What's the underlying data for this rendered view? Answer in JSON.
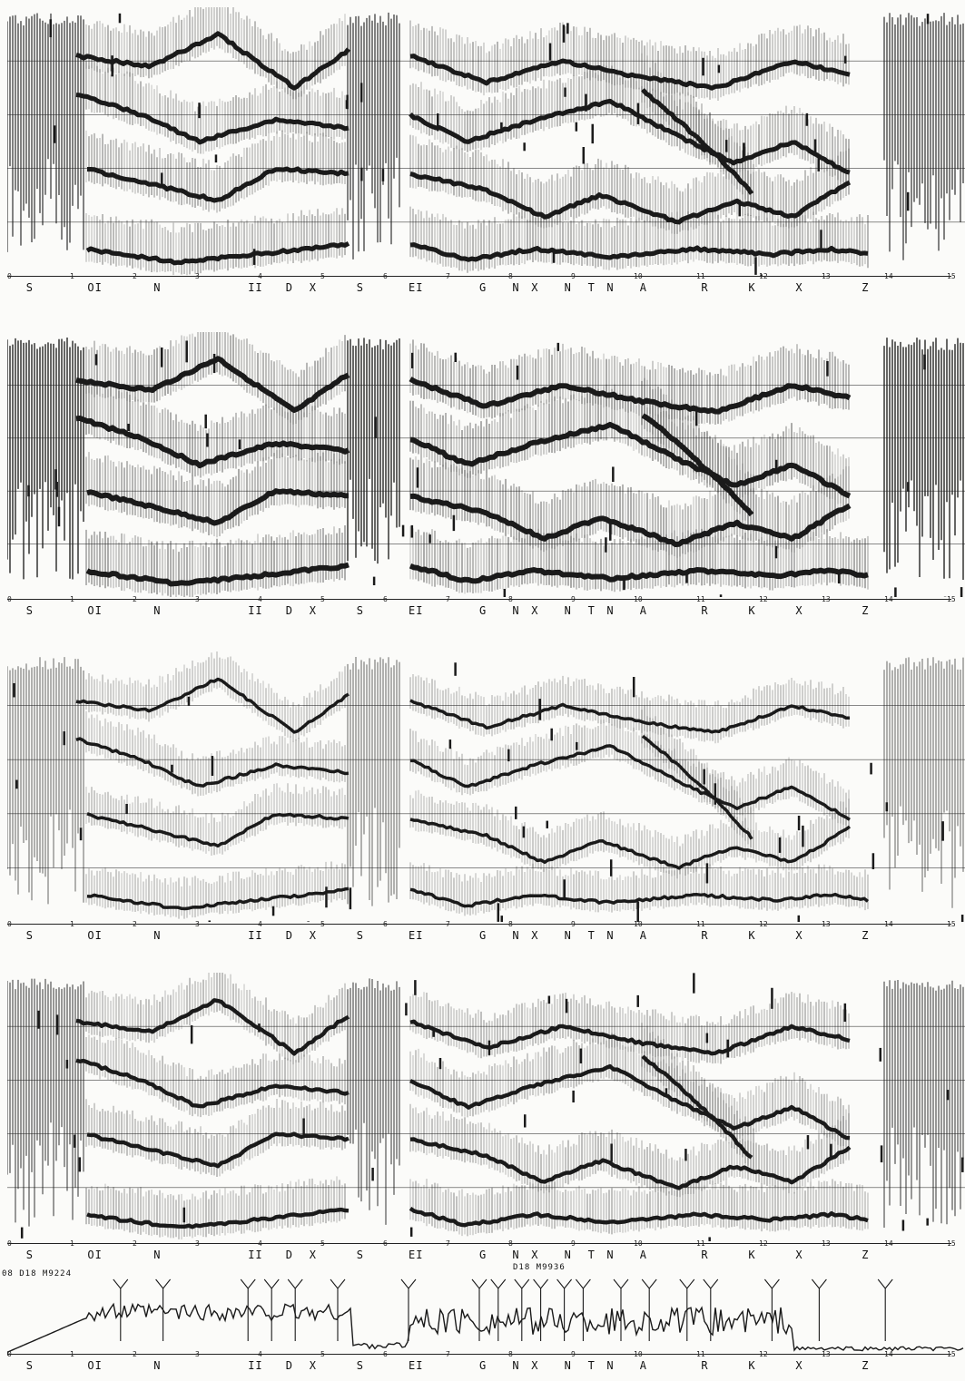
{
  "segments": [
    "S",
    "OI",
    "N",
    "II",
    "D",
    "X",
    "S",
    "EI",
    "G",
    "N",
    "X",
    "N",
    "T",
    "N",
    "A",
    "R",
    "K",
    "X",
    "Z"
  ],
  "tick_numbers": [
    "0",
    "1",
    "2",
    "3",
    "4",
    "5",
    "6",
    "7",
    "8",
    "9",
    "10",
    "11",
    "12",
    "13",
    "14",
    "15"
  ],
  "panels": [
    {
      "id": "panel-1",
      "style": "dense"
    },
    {
      "id": "panel-2",
      "style": "dense-dark"
    },
    {
      "id": "panel-3",
      "style": "light"
    },
    {
      "id": "panel-4",
      "style": "medium"
    }
  ],
  "trace": {
    "run_label_left": "08 D18 M9224",
    "run_label_right": "D18 M9936"
  },
  "colors": {
    "ink": "#1a1a1a",
    "grid": "#444444",
    "paper": "#fbfbf9"
  }
}
